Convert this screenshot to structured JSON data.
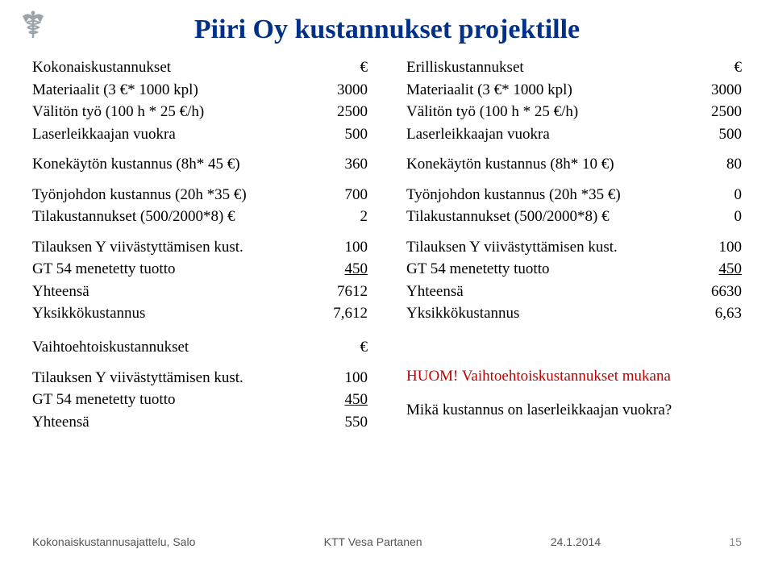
{
  "title": "Piiri Oy kustannukset projektille",
  "left": {
    "heading": {
      "label": "Kokonaiskustannukset",
      "val": "€"
    },
    "rows1": [
      {
        "label": "Materiaalit (3 €* 1000 kpl)",
        "val": "3000"
      },
      {
        "label": "Välitön työ (100 h * 25 €/h)",
        "val": "2500"
      },
      {
        "label": "Laserleikkaajan vuokra",
        "val": "500"
      }
    ],
    "rows2": [
      {
        "label": "Konekäytön kustannus (8h* 45 €)",
        "val": "360"
      }
    ],
    "rows3": [
      {
        "label": "Työnjohdon kustannus (20h *35 €)",
        "val": "700"
      },
      {
        "label": "Tilakustannukset (500/2000*8) €",
        "val": "2"
      }
    ],
    "rows4": [
      {
        "label": "Tilauksen Y viivästyttämisen kust.",
        "val": "100"
      },
      {
        "label": "GT 54 menetetty tuotto",
        "val": "450",
        "underlined": true
      },
      {
        "label": "Yhteensä",
        "val": "7612"
      },
      {
        "label": "Yksikkökustannus",
        "val": "7,612"
      }
    ]
  },
  "right": {
    "heading": {
      "label": "Erilliskustannukset",
      "val": "€"
    },
    "rows1": [
      {
        "label": "Materiaalit (3 €* 1000 kpl)",
        "val": "3000"
      },
      {
        "label": "Välitön työ (100 h * 25 €/h)",
        "val": "2500"
      },
      {
        "label": "Laserleikkaajan vuokra",
        "val": "500"
      }
    ],
    "rows2": [
      {
        "label": "Konekäytön kustannus (8h* 10 €)",
        "val": "80"
      }
    ],
    "rows3": [
      {
        "label": "Työnjohdon kustannus (20h *35 €)",
        "val": "0"
      },
      {
        "label": "Tilakustannukset (500/2000*8) €",
        "val": "0"
      }
    ],
    "rows4": [
      {
        "label": "Tilauksen Y viivästyttämisen kust.",
        "val": "100"
      },
      {
        "label": "GT 54 menetetty tuotto",
        "val": "450",
        "underlined": true
      },
      {
        "label": "Yhteensä",
        "val": "6630"
      },
      {
        "label": "Yksikkökustannus",
        "val": "6,63"
      }
    ]
  },
  "alt": {
    "heading": {
      "label": "Vaihtoehtoiskustannukset",
      "val": "€"
    },
    "rows": [
      {
        "label": "Tilauksen Y viivästyttämisen kust.",
        "val": "100"
      },
      {
        "label": "GT 54 menetetty tuotto",
        "val": "450",
        "underlined": true
      },
      {
        "label": "Yhteensä",
        "val": "550"
      }
    ]
  },
  "notes": {
    "line1": "HUOM! Vaihtoehtoiskustannukset mukana",
    "line2": "Mikä kustannus on laserleikkaajan vuokra?"
  },
  "footer": {
    "left": "Kokonaiskustannusajattelu, Salo",
    "mid": "KTT Vesa Partanen",
    "date": "24.1.2014",
    "page": "15"
  },
  "colors": {
    "title": "#003087",
    "red": "#c00000",
    "logo": "#9ba4a9",
    "footer": "#555555"
  }
}
